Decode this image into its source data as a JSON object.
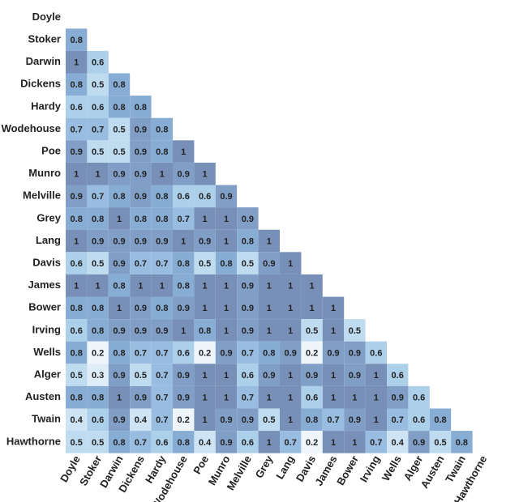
{
  "chart_data": {
    "type": "heatmap",
    "title": "",
    "xlabel": "",
    "ylabel": "",
    "authors": [
      "Doyle",
      "Stoker",
      "Darwin",
      "Dickens",
      "Hardy",
      "Wodehouse",
      "Poe",
      "Munro",
      "Melville",
      "Grey",
      "Lang",
      "Davis",
      "James",
      "Bower",
      "Irving",
      "Wells",
      "Alger",
      "Austen",
      "Twain",
      "Hawthorne"
    ],
    "values": [
      [],
      [
        0.8
      ],
      [
        1,
        0.6
      ],
      [
        0.8,
        0.5,
        0.8
      ],
      [
        0.6,
        0.6,
        0.8,
        0.8
      ],
      [
        0.7,
        0.7,
        0.5,
        0.9,
        0.8
      ],
      [
        0.9,
        0.5,
        0.5,
        0.9,
        0.8,
        1
      ],
      [
        1,
        1,
        0.9,
        0.9,
        1,
        0.9,
        1
      ],
      [
        0.9,
        0.7,
        0.8,
        0.9,
        0.8,
        0.6,
        0.6,
        0.9
      ],
      [
        0.8,
        0.8,
        1,
        0.8,
        0.8,
        0.7,
        1,
        1,
        0.9
      ],
      [
        1,
        0.9,
        0.9,
        0.9,
        0.9,
        1,
        0.9,
        1,
        0.8,
        1
      ],
      [
        0.6,
        0.5,
        0.9,
        0.7,
        0.7,
        0.8,
        0.5,
        0.8,
        0.5,
        0.9,
        1
      ],
      [
        1,
        1,
        0.8,
        1,
        1,
        0.8,
        1,
        1,
        0.9,
        1,
        1,
        1
      ],
      [
        0.8,
        0.8,
        1,
        0.9,
        0.8,
        0.9,
        1,
        1,
        0.9,
        1,
        1,
        1,
        1
      ],
      [
        0.6,
        0.8,
        0.9,
        0.9,
        0.9,
        1,
        0.8,
        1,
        0.9,
        1,
        1,
        0.5,
        1,
        0.5
      ],
      [
        0.8,
        0.2,
        0.8,
        0.7,
        0.7,
        0.6,
        0.2,
        0.9,
        0.7,
        0.8,
        0.9,
        0.2,
        0.9,
        0.9,
        0.6
      ],
      [
        0.5,
        0.3,
        0.9,
        0.5,
        0.7,
        0.9,
        1,
        1,
        0.6,
        0.9,
        1,
        0.9,
        1,
        0.9,
        1,
        0.6
      ],
      [
        0.8,
        0.8,
        1,
        0.9,
        0.7,
        0.9,
        1,
        1,
        0.7,
        1,
        1,
        0.6,
        1,
        1,
        1,
        0.9,
        0.6
      ],
      [
        0.4,
        0.6,
        0.9,
        0.4,
        0.7,
        0.2,
        1,
        0.9,
        0.9,
        0.5,
        1,
        0.8,
        0.7,
        0.9,
        1,
        0.7,
        0.6,
        0.8
      ],
      [
        0.5,
        0.5,
        0.8,
        0.7,
        0.6,
        0.8,
        0.4,
        0.9,
        0.6,
        1,
        0.7,
        0.2,
        1,
        1,
        0.7,
        0.4,
        0.9,
        0.5,
        0.8
      ]
    ],
    "color_scale": {
      "low": "#eef6fc",
      "high": "#7890b8"
    },
    "grid": false,
    "legend": "none"
  }
}
